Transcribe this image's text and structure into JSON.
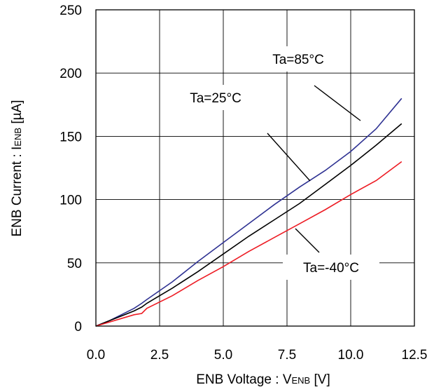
{
  "chart_data": {
    "type": "line",
    "x_label": {
      "main": "ENB Voltage : V",
      "sub": "ENB",
      "unit": " [V]"
    },
    "y_label": {
      "main": "ENB Current : I",
      "sub": "ENB",
      "unit": " [µA]"
    },
    "xlim": [
      0,
      12.5
    ],
    "ylim": [
      0,
      250
    ],
    "x_ticks": [
      "0.0",
      "2.5",
      "5.0",
      "7.5",
      "10.0",
      "12.5"
    ],
    "y_ticks": [
      "0",
      "50",
      "100",
      "150",
      "200",
      "250"
    ],
    "x_tick_values": [
      0,
      2.5,
      5,
      7.5,
      10,
      12.5
    ],
    "y_tick_values": [
      0,
      50,
      100,
      150,
      200,
      250
    ],
    "grid": true,
    "series": [
      {
        "name": "Ta=85°C",
        "color": "#2e3192",
        "x": [
          0,
          0.5,
          1.0,
          1.5,
          1.8,
          2.0,
          2.5,
          3.0,
          4.0,
          5.0,
          6.0,
          7.0,
          8.0,
          9.0,
          10.0,
          11.0,
          12.0
        ],
        "y": [
          0,
          4,
          9,
          14,
          18,
          21,
          28,
          35,
          51,
          66,
          81,
          96,
          110,
          123,
          138,
          156,
          180
        ]
      },
      {
        "name": "Ta=25°C",
        "color": "#000000",
        "x": [
          0,
          0.5,
          1.0,
          1.5,
          1.8,
          2.0,
          2.5,
          3.0,
          4.0,
          5.0,
          6.0,
          7.0,
          8.0,
          9.0,
          10.0,
          10.5,
          11.0,
          12.0
        ],
        "y": [
          0,
          4,
          8,
          12,
          15,
          18,
          24,
          30,
          43,
          57,
          71,
          84,
          97,
          112,
          127,
          135,
          143,
          160
        ]
      },
      {
        "name": "Ta=-40°C",
        "color": "#ed1c24",
        "x": [
          0,
          0.5,
          1.0,
          1.5,
          1.8,
          2.0,
          3.0,
          4.0,
          5.0,
          6.0,
          7.0,
          8.0,
          9.0,
          10.0,
          11.0,
          12.0
        ],
        "y": [
          0,
          3,
          6,
          9,
          10,
          14,
          24,
          36,
          47,
          59,
          70,
          81,
          92,
          104,
          115,
          130
        ]
      }
    ],
    "annotations": [
      {
        "text": "Ta=85°C",
        "series": "Ta=85°C"
      },
      {
        "text": "Ta=25°C",
        "series": "Ta=25°C"
      },
      {
        "text": "Ta=-40°C",
        "series": "Ta=-40°C"
      }
    ]
  }
}
